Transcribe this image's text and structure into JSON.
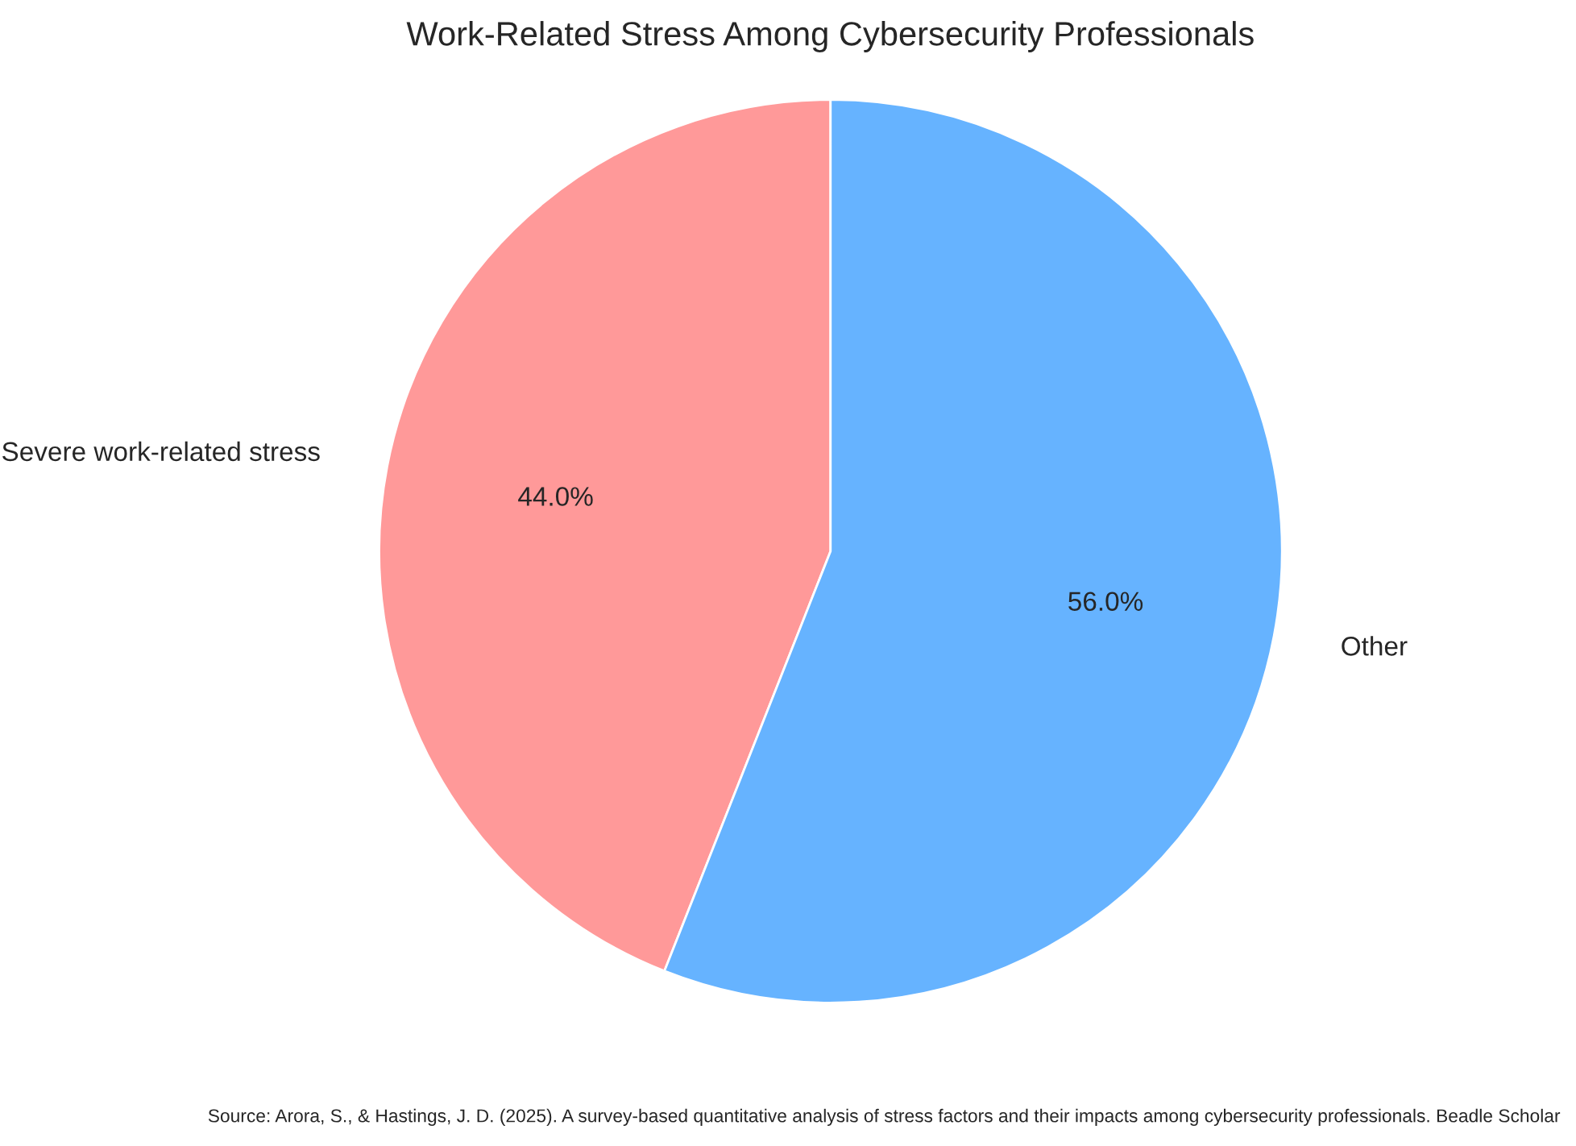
{
  "chart_data": {
    "type": "pie",
    "title": "Work-Related Stress Among Cybersecurity Professionals",
    "categories": [
      "Severe work-related stress",
      "Other"
    ],
    "values": [
      44,
      56
    ],
    "colors": [
      "#ff9999",
      "#66b3ff"
    ],
    "value_labels": [
      "44.0%",
      "56.0%"
    ],
    "annotations": [
      "Source: Arora, S., & Hastings, J. D. (2025). A survey-based quantitative analysis of stress factors and their impacts among cybersecurity professionals. Beadle Scholar"
    ]
  }
}
